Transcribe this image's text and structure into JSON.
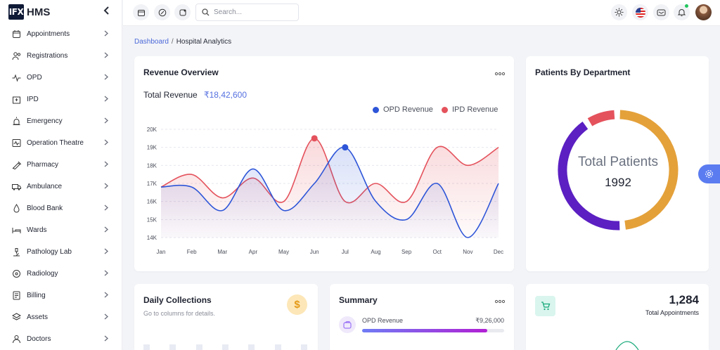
{
  "brand": {
    "logo_text": "IFX",
    "name": "HMS"
  },
  "sidebar": {
    "items": [
      {
        "label": "Appointments",
        "icon": "calendar-icon"
      },
      {
        "label": "Registrations",
        "icon": "users-icon"
      },
      {
        "label": "OPD",
        "icon": "pulse-icon"
      },
      {
        "label": "IPD",
        "icon": "hospital-icon"
      },
      {
        "label": "Emergency",
        "icon": "siren-icon"
      },
      {
        "label": "Operation Theatre",
        "icon": "monitor-pulse-icon"
      },
      {
        "label": "Pharmacy",
        "icon": "syringe-icon"
      },
      {
        "label": "Ambulance",
        "icon": "ambulance-icon"
      },
      {
        "label": "Blood Bank",
        "icon": "blood-drop-icon"
      },
      {
        "label": "Wards",
        "icon": "bed-icon"
      },
      {
        "label": "Pathology Lab",
        "icon": "microscope-icon"
      },
      {
        "label": "Radiology",
        "icon": "radiology-icon"
      },
      {
        "label": "Billing",
        "icon": "invoice-icon"
      },
      {
        "label": "Assets",
        "icon": "layers-icon"
      },
      {
        "label": "Doctors",
        "icon": "doctor-icon"
      }
    ]
  },
  "topbar": {
    "search_placeholder": "Search...",
    "notification_dot_color": "#22c55e"
  },
  "breadcrumb": {
    "link": "Dashboard",
    "separator": "/",
    "current": "Hospital Analytics"
  },
  "revenue": {
    "title": "Revenue Overview",
    "total_label": "Total Revenue",
    "total_value": "₹18,42,600"
  },
  "chart_data": [
    {
      "type": "area",
      "title": "",
      "xlabel": "",
      "ylabel": "",
      "categories": [
        "Jan",
        "Feb",
        "Mar",
        "Apr",
        "May",
        "Jun",
        "Jul",
        "Aug",
        "Sep",
        "Oct",
        "Nov",
        "Dec"
      ],
      "y_ticks": [
        "14K",
        "15K",
        "16K",
        "17K",
        "18K",
        "19K",
        "20K"
      ],
      "ylim": [
        14000,
        20000
      ],
      "grid": true,
      "legend": "top-right",
      "series": [
        {
          "name": "OPD Revenue",
          "color": "#2d55d8",
          "values": [
            16800,
            16800,
            15500,
            17800,
            15500,
            17000,
            19000,
            16000,
            15000,
            17000,
            14000,
            17000
          ],
          "highlight_index": 6
        },
        {
          "name": "IPD Revenue",
          "color": "#e4525c",
          "values": [
            16800,
            17500,
            16200,
            17300,
            16000,
            19500,
            16000,
            17000,
            16000,
            19000,
            18000,
            19000
          ],
          "highlight_index": 5
        }
      ]
    },
    {
      "type": "pie",
      "title": "",
      "center_label": "Total Patients",
      "center_value": "1992",
      "slices": [
        {
          "value": 0.49,
          "color": "#e4a13a"
        },
        {
          "value": 0.42,
          "color": "#5b1fc2"
        },
        {
          "value": 0.09,
          "color": "#e4525c"
        }
      ]
    }
  ],
  "department": {
    "title": "Patients By Department"
  },
  "collections": {
    "title": "Daily Collections",
    "subtitle": "Go to columns for details.",
    "icon_glyph": "$"
  },
  "summary": {
    "title": "Summary",
    "opd_label": "OPD Revenue",
    "opd_value": "₹9,26,000",
    "opd_progress": 0.88
  },
  "appointments_stat": {
    "value": "1,284",
    "label": "Total Appointments"
  }
}
